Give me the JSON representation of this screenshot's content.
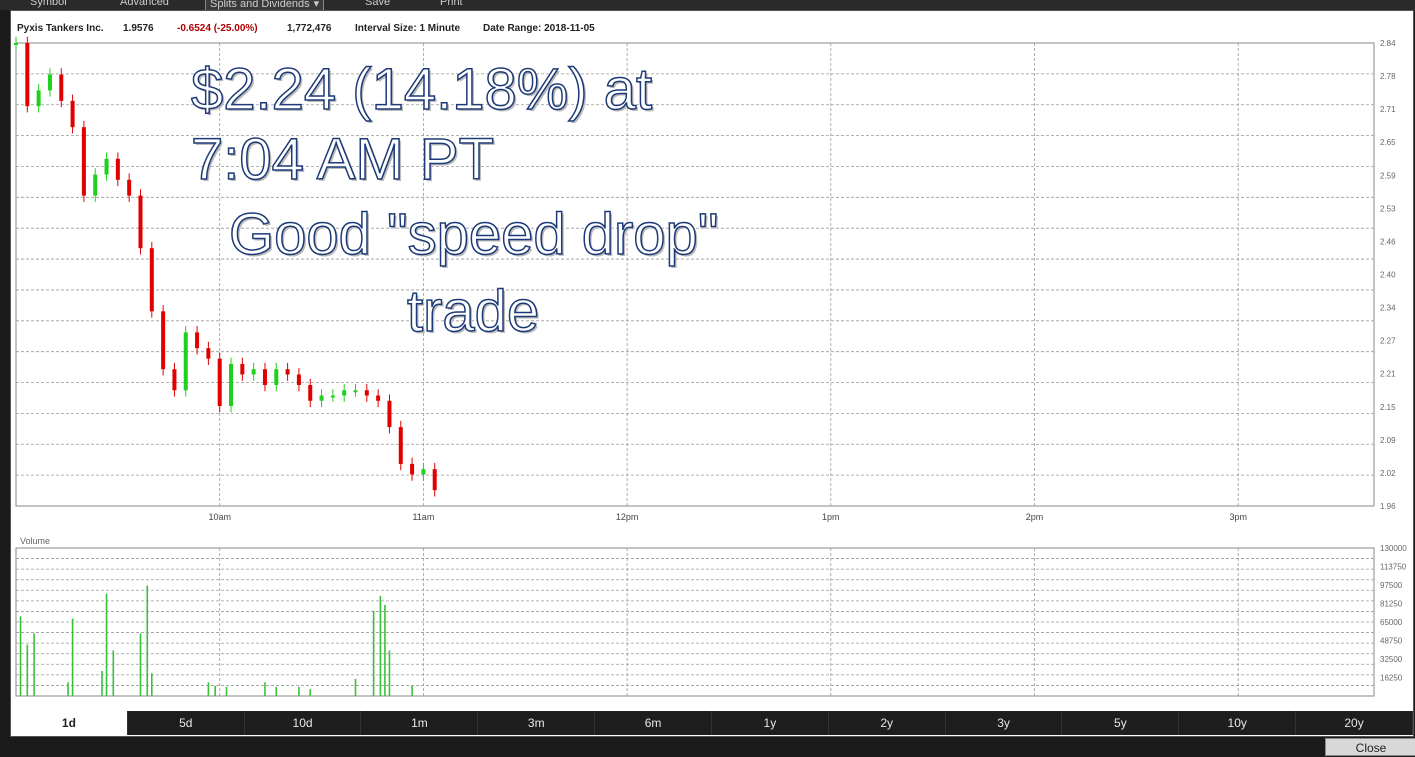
{
  "toolbar": {
    "symbol_label": "Symbol",
    "advanced_label": "Advanced",
    "splits_select": "Splits and Dividends",
    "save_label": "Save",
    "print_label": "Print"
  },
  "header": {
    "company": "Pyxis Tankers Inc.",
    "price": "1.9576",
    "change": "-0.6524 (-25.00%)",
    "volume": "1,772,476",
    "interval": "Interval Size:  1 Minute",
    "range": "Date Range:  2018-11-05"
  },
  "annotation": {
    "line1": "$2.24 (14.18%) at",
    "line2": "7:04 AM PT",
    "line3": "Good \"speed drop\"",
    "line4": "trade"
  },
  "timeframes": [
    "1d",
    "5d",
    "10d",
    "1m",
    "3m",
    "6m",
    "1y",
    "2y",
    "3y",
    "5y",
    "10y",
    "20y"
  ],
  "active_timeframe": "1d",
  "close_label": "Close",
  "volume_label": "Volume",
  "colors": {
    "up": "#1fd01f",
    "down": "#e00000",
    "volume": "#3ac03a",
    "grid": "#9a9a9a"
  },
  "chart_data": [
    {
      "type": "candlestick",
      "x_ticks": [
        "10am",
        "11am",
        "12pm",
        "1pm",
        "2pm",
        "3pm"
      ],
      "ylim": [
        1.96,
        2.84
      ],
      "x": [
        0,
        5,
        10,
        15,
        20,
        25,
        30,
        35,
        40,
        45,
        50,
        55,
        60,
        65,
        70,
        75,
        80,
        85,
        90,
        95,
        100,
        105,
        110,
        115,
        120,
        125,
        130,
        135,
        140,
        145,
        150,
        155,
        160,
        165,
        170,
        175,
        180,
        185
      ],
      "close": [
        2.84,
        2.72,
        2.75,
        2.78,
        2.73,
        2.68,
        2.55,
        2.59,
        2.62,
        2.58,
        2.55,
        2.45,
        2.33,
        2.22,
        2.18,
        2.29,
        2.26,
        2.24,
        2.15,
        2.23,
        2.21,
        2.22,
        2.19,
        2.22,
        2.21,
        2.19,
        2.16,
        2.17,
        2.17,
        2.18,
        2.18,
        2.17,
        2.16,
        2.11,
        2.04,
        2.02,
        2.03,
        1.99
      ],
      "grid": true
    },
    {
      "type": "bar",
      "name": "Volume",
      "x": [
        2,
        5,
        8,
        23,
        25,
        38,
        40,
        43,
        55,
        58,
        60,
        85,
        88,
        93,
        110,
        115,
        125,
        130,
        150,
        158,
        161,
        163,
        165,
        175
      ],
      "values": [
        70000,
        45000,
        55000,
        12000,
        68000,
        22000,
        90000,
        40000,
        55000,
        97000,
        20000,
        12000,
        9000,
        8000,
        12000,
        8000,
        8000,
        6000,
        15000,
        75000,
        88000,
        80000,
        40000,
        9000
      ],
      "ylim": [
        0,
        130000
      ],
      "grid": true
    }
  ]
}
